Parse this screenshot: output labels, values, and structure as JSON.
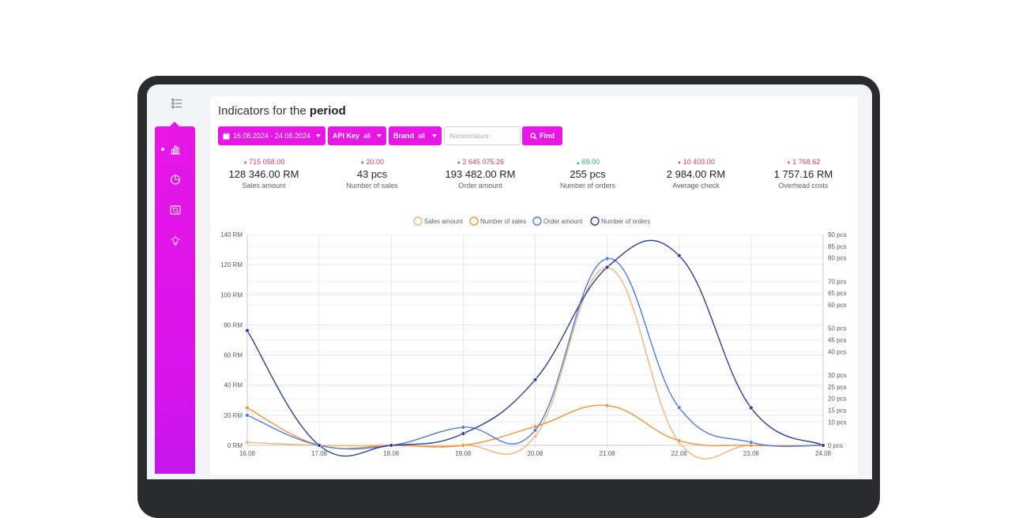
{
  "colors": {
    "accent": "#e716e6",
    "sales_amount": "#f5b37a",
    "number_of_sales": "#f2943a",
    "order_amount": "#4e7be0",
    "number_of_orders": "#2c3f96",
    "down": "#e23a6d",
    "up": "#1fba62"
  },
  "header": {
    "title_prefix": "Indicators for the",
    "title_bold": "period"
  },
  "sidebar": {
    "items": [
      {
        "icon": "bar-chart-icon",
        "active": true
      },
      {
        "icon": "pie-chart-icon",
        "active": false
      },
      {
        "icon": "money-icon",
        "active": false
      },
      {
        "icon": "lightbulb-icon",
        "active": false
      }
    ]
  },
  "filters": {
    "date_range": "16.08.2024 - 24.08.2024",
    "api_key_label": "API Key",
    "api_key_value": "all",
    "brand_label": "Brand",
    "brand_value": "all",
    "nomenclature_placeholder": "Nomenclature",
    "find_label": "Find"
  },
  "stats": [
    {
      "delta": "715 058.00",
      "dir": "down",
      "value": "128 346.00 RM",
      "label": "Sales amount"
    },
    {
      "delta": "20.00",
      "dir": "down",
      "value": "43 pcs",
      "label": "Number of sales"
    },
    {
      "delta": "2 645 075.26",
      "dir": "down",
      "value": "193 482.00 RM",
      "label": "Order amount"
    },
    {
      "delta": "69.00",
      "dir": "up",
      "value": "255 pcs",
      "label": "Number of orders"
    },
    {
      "delta": "10 403.00",
      "dir": "down",
      "value": "2 984.00 RM",
      "label": "Average check"
    },
    {
      "delta": "1 768.62",
      "dir": "down",
      "value": "1 757.16 RM",
      "label": "Overhead costs"
    }
  ],
  "chart_data": {
    "type": "line",
    "categories": [
      "16.08",
      "17.08",
      "18.08",
      "19.08",
      "20.08",
      "21.08",
      "22.08",
      "23.08",
      "24.08"
    ],
    "y_left": {
      "min": 0,
      "max": 140,
      "ticks": [
        "0 RM",
        "20 RM",
        "40 RM",
        "60 RM",
        "80 RM",
        "100 RM",
        "120 RM",
        "140 RM"
      ]
    },
    "y_right": {
      "min": 0,
      "max": 90,
      "ticks": [
        "0 pcs",
        "10 pcs",
        "15 pcs",
        "20 pcs",
        "25 pcs",
        "30 pcs",
        "40 pcs",
        "45 pcs",
        "50 pcs",
        "60 pcs",
        "65 pcs",
        "70 pcs",
        "80 pcs",
        "85 pcs",
        "90 pcs"
      ]
    },
    "grid": true,
    "legend": "top-center",
    "series": [
      {
        "name": "Sales amount",
        "axis": "left",
        "values": [
          2,
          0,
          0,
          0,
          6,
          118,
          2,
          0,
          0
        ]
      },
      {
        "name": "Number of sales",
        "axis": "right",
        "values": [
          16,
          0,
          0,
          0,
          8,
          17,
          2,
          0,
          0
        ]
      },
      {
        "name": "Order amount",
        "axis": "left",
        "values": [
          20,
          0,
          0,
          12,
          10,
          124,
          25,
          2,
          0
        ]
      },
      {
        "name": "Number of orders",
        "axis": "right",
        "values": [
          49,
          0,
          0,
          5,
          28,
          76,
          81,
          16,
          0
        ]
      }
    ]
  }
}
